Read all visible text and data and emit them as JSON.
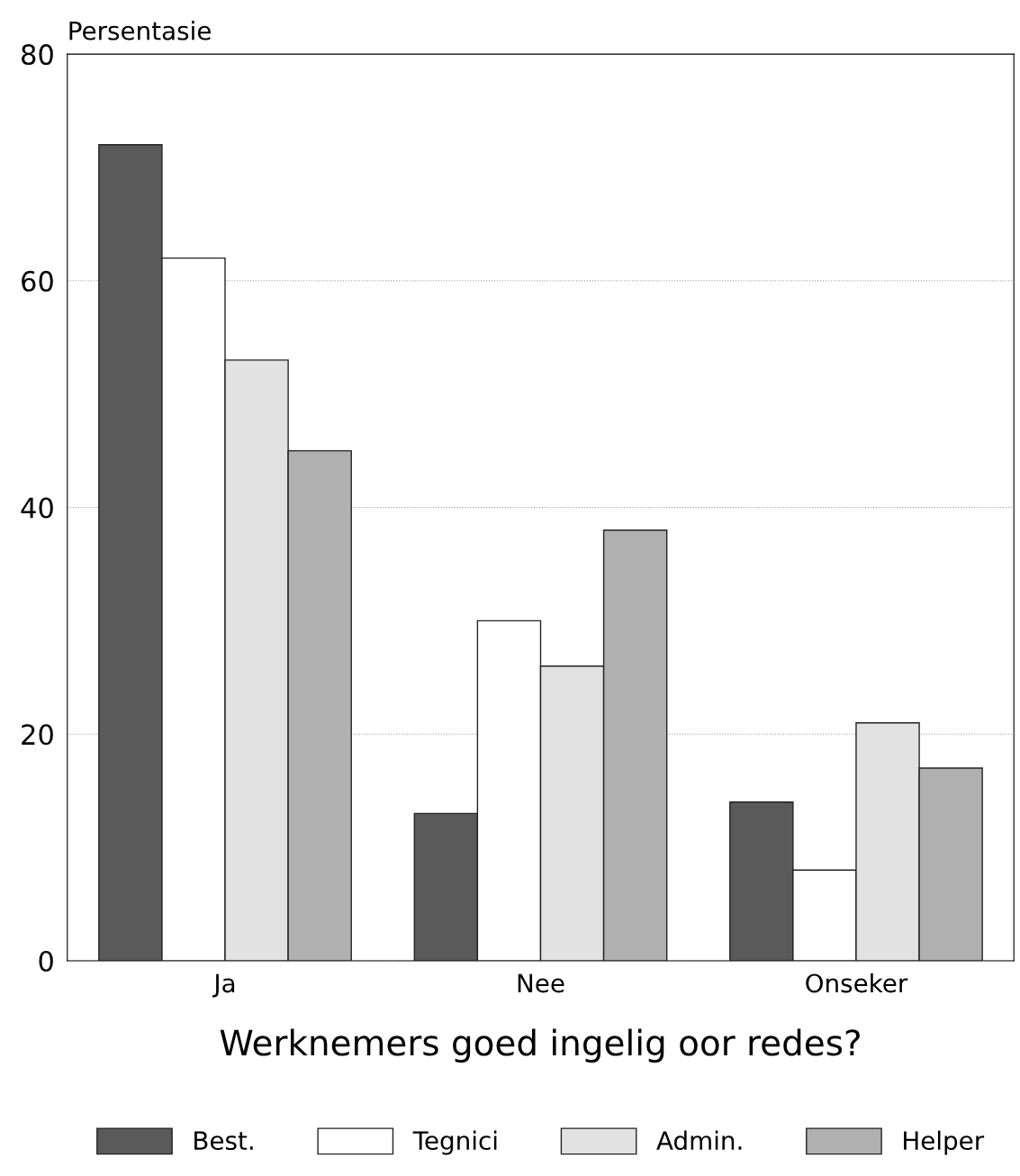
{
  "chart_data": {
    "type": "bar",
    "ylabel": "Persentasie",
    "xlabel": "Werknemers goed ingelig oor redes?",
    "categories": [
      "Ja",
      "Nee",
      "Onseker"
    ],
    "series": [
      {
        "name": "Best.",
        "color": "#5a5a5a",
        "values": [
          72,
          13,
          14
        ]
      },
      {
        "name": "Tegnici",
        "color": "#ffffff",
        "values": [
          62,
          30,
          8
        ]
      },
      {
        "name": "Admin.",
        "color": "#e2e2e2",
        "values": [
          53,
          26,
          21
        ]
      },
      {
        "name": "Helper",
        "color": "#b0b0b0",
        "values": [
          45,
          38,
          17
        ]
      }
    ],
    "ylim": [
      0,
      80
    ],
    "yticks": [
      0,
      20,
      40,
      60,
      80
    ],
    "grid": "y",
    "legend": "bottom"
  }
}
